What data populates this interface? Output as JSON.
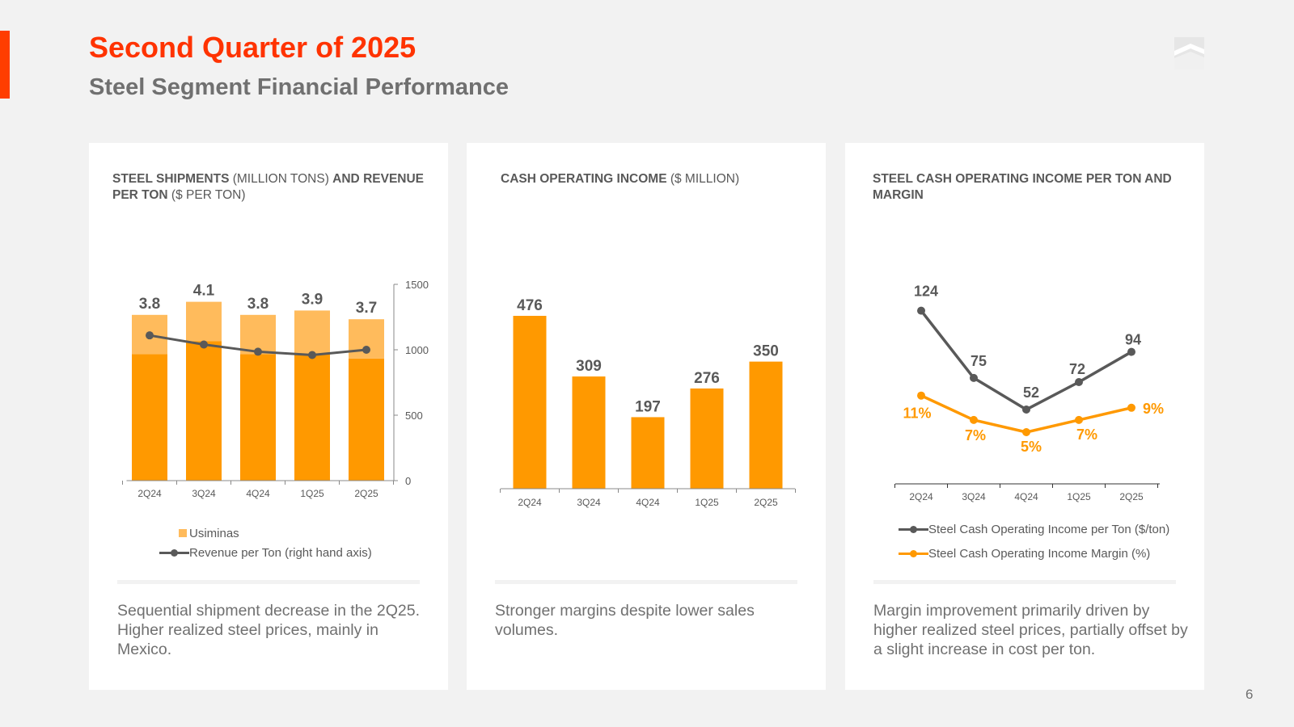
{
  "header": {
    "title": "Second Quarter of 2025",
    "subtitle": "Steel Segment Financial Performance",
    "page_number": "6"
  },
  "colors": {
    "accent": "#ff3300",
    "orange": "#ff9900",
    "light_orange": "#ffbb5c",
    "gray_line": "#595959",
    "card_bg": "#ffffff",
    "slide_bg": "#f2f2f2"
  },
  "cards": [
    {
      "title_parts": [
        {
          "text": "STEEL SHIPMENTS",
          "bold": true
        },
        {
          "text": " (MILLION TONS) ",
          "bold": false
        },
        {
          "text": "AND",
          "bold": true
        },
        {
          "text": " REVENUE PER TON",
          "bold": true
        },
        {
          "text": " ($ PER TON)",
          "bold": false
        }
      ],
      "note": "Sequential shipment decrease in the 2Q25. Higher realized steel prices, mainly in Mexico.",
      "legend": [
        {
          "label": "Usiminas",
          "icon": "square",
          "color": "#ffbb5c"
        },
        {
          "label": "Revenue per Ton (right hand axis)",
          "icon": "line-marker",
          "color": "#595959"
        }
      ]
    },
    {
      "title_parts": [
        {
          "text": "CASH OPERATING INCOME",
          "bold": true
        },
        {
          "text": " ($ MILLION)",
          "bold": false
        }
      ],
      "note": "Stronger margins despite lower sales volumes."
    },
    {
      "title_parts": [
        {
          "text": "STEEL CASH OPERATING INCOME",
          "bold": true
        },
        {
          "text": " PER TON AND MARGIN",
          "bold": true
        }
      ],
      "note": "Margin improvement primarily driven by higher realized steel prices, partially offset by a slight increase in cost per ton.",
      "legend": [
        {
          "label": "Steel Cash Operating Income per Ton ($/ton)",
          "icon": "line-marker",
          "color": "#595959"
        },
        {
          "label": "Steel Cash Operating Income Margin (%)",
          "icon": "line-marker",
          "color": "#ff9900"
        }
      ]
    }
  ],
  "chart_data": [
    {
      "type": "bar",
      "title": "STEEL SHIPMENTS (MILLION TONS) AND REVENUE PER TON ($ PER TON)",
      "categories": [
        "2Q24",
        "3Q24",
        "4Q24",
        "1Q25",
        "2Q25"
      ],
      "stacked": true,
      "series": [
        {
          "name": "Steel shipments",
          "values": [
            2.9,
            3.2,
            2.9,
            2.9,
            2.8
          ],
          "color": "#ff9900"
        },
        {
          "name": "Usiminas",
          "values": [
            0.9,
            0.9,
            0.9,
            1.0,
            0.9
          ],
          "color": "#ffbb5c"
        }
      ],
      "total_labels": [
        "3.8",
        "4.1",
        "3.8",
        "3.9",
        "3.7"
      ],
      "ylim": [
        0,
        4.5
      ],
      "secondary_axis": {
        "name": "Revenue per Ton (right hand axis)",
        "values": [
          1110,
          1040,
          985,
          960,
          1000
        ],
        "ylim": [
          0,
          1500
        ],
        "ticks": [
          "0",
          "500",
          "1000",
          "1500"
        ],
        "color": "#595959"
      }
    },
    {
      "type": "bar",
      "title": "CASH OPERATING INCOME ($ MILLION)",
      "categories": [
        "2Q24",
        "3Q24",
        "4Q24",
        "1Q25",
        "2Q25"
      ],
      "values": [
        476,
        309,
        197,
        276,
        350
      ],
      "labels": [
        "476",
        "309",
        "197",
        "276",
        "350"
      ],
      "ylim": [
        0,
        500
      ],
      "color": "#ff9900"
    },
    {
      "type": "line",
      "title": "STEEL CASH OPERATING INCOME PER TON AND MARGIN",
      "categories": [
        "2Q24",
        "3Q24",
        "4Q24",
        "1Q25",
        "2Q25"
      ],
      "series": [
        {
          "name": "Steel Cash Operating Income per Ton ($/ton)",
          "values": [
            124,
            75,
            52,
            72,
            94
          ],
          "labels": [
            "124",
            "75",
            "52",
            "72",
            "94"
          ],
          "color": "#595959"
        },
        {
          "name": "Steel Cash Operating Income Margin (%)",
          "values": [
            11,
            7,
            5,
            7,
            9
          ],
          "labels": [
            "11%",
            "7%",
            "5%",
            "7%",
            "9%"
          ],
          "color": "#ff9900"
        }
      ]
    }
  ]
}
